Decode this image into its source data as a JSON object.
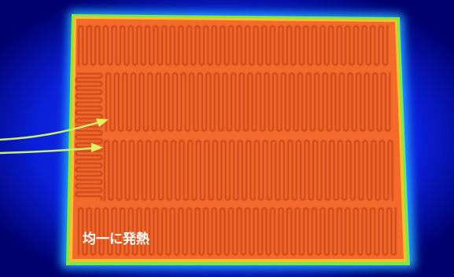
{
  "caption": "均一に発熱"
}
